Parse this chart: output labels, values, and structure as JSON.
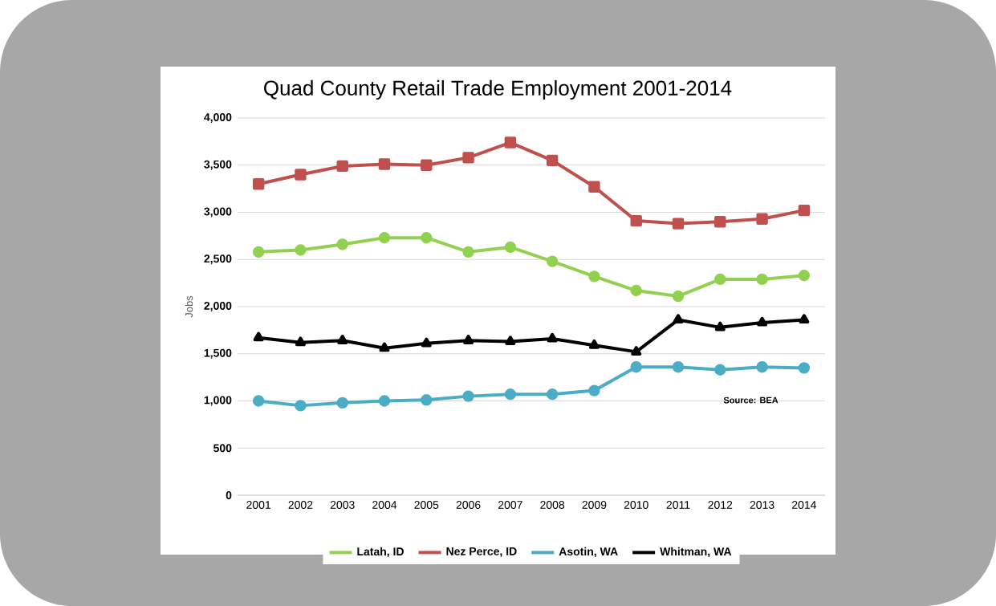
{
  "chart_data": {
    "type": "line",
    "title": "Quad County Retail Trade Employment 2001-2014",
    "ylabel": "Jobs",
    "categories": [
      "2001",
      "2002",
      "2003",
      "2004",
      "2005",
      "2006",
      "2007",
      "2008",
      "2009",
      "2010",
      "2011",
      "2012",
      "2013",
      "2014"
    ],
    "series": [
      {
        "name": "Latah, ID",
        "color": "#92d050",
        "marker": "circle",
        "values": [
          2580,
          2600,
          2660,
          2730,
          2730,
          2580,
          2630,
          2480,
          2320,
          2170,
          2110,
          2290,
          2290,
          2330
        ]
      },
      {
        "name": "Nez Perce, ID",
        "color": "#c0504d",
        "marker": "square",
        "values": [
          3300,
          3400,
          3490,
          3510,
          3500,
          3580,
          3740,
          3550,
          3270,
          2910,
          2880,
          2900,
          2930,
          3020
        ]
      },
      {
        "name": "Asotin, WA",
        "color": "#4bacc6",
        "marker": "circle",
        "values": [
          1000,
          950,
          980,
          1000,
          1010,
          1050,
          1070,
          1070,
          1110,
          1360,
          1360,
          1330,
          1360,
          1350
        ]
      },
      {
        "name": "Whitman, WA",
        "color": "#000000",
        "marker": "triangle",
        "values": [
          1670,
          1620,
          1640,
          1560,
          1610,
          1640,
          1630,
          1660,
          1590,
          1520,
          1860,
          1780,
          1830,
          1860
        ]
      }
    ],
    "ylim": [
      0,
      4000
    ],
    "yticks": [
      {
        "value": 0,
        "label": "0"
      },
      {
        "value": 500,
        "label": "500"
      },
      {
        "value": 1000,
        "label": "1,000"
      },
      {
        "value": 1500,
        "label": "1,500"
      },
      {
        "value": 2000,
        "label": "2,000"
      },
      {
        "value": 2500,
        "label": "2,500"
      },
      {
        "value": 3000,
        "label": "3,000"
      },
      {
        "value": 3500,
        "label": "3,500"
      },
      {
        "value": 4000,
        "label": "4,000"
      }
    ],
    "grid": "y",
    "legend": "bottom",
    "line_style": "solid",
    "annotations": [
      "Source:  BEA"
    ]
  }
}
